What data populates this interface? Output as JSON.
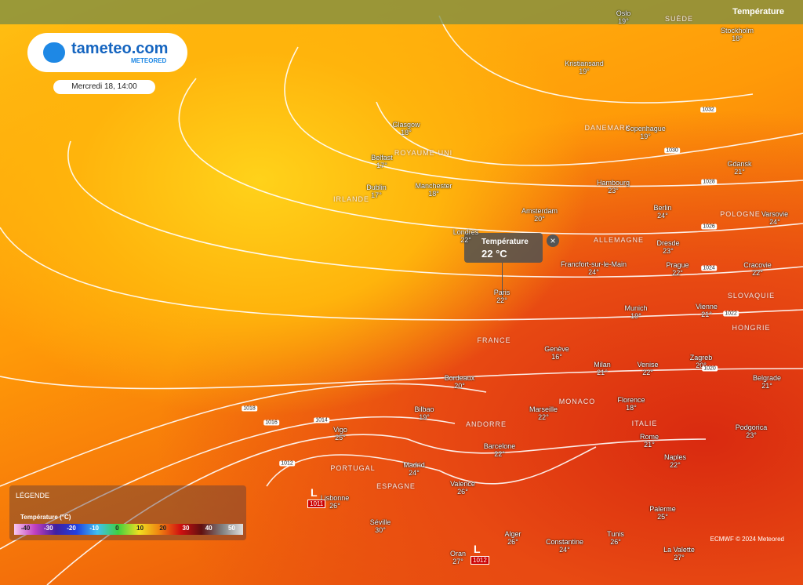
{
  "header": {
    "layer": "Température",
    "date": "Mercredi 18, 14:00"
  },
  "brand": {
    "name": "tameteo.com",
    "sub": "METEORED"
  },
  "popup": {
    "title": "Température",
    "value": "22 °C"
  },
  "cities": [
    {
      "name": "Oslo",
      "temp": "19°"
    },
    {
      "name": "Stockholm",
      "temp": "18°"
    },
    {
      "name": "Kristiansand",
      "temp": "19°"
    },
    {
      "name": "Glasgow",
      "temp": "18°"
    },
    {
      "name": "Copenhague",
      "temp": "19°"
    },
    {
      "name": "Belfast",
      "temp": "17°"
    },
    {
      "name": "Gdansk",
      "temp": "21°"
    },
    {
      "name": "Dublin",
      "temp": "17°"
    },
    {
      "name": "Manchester",
      "temp": "18°"
    },
    {
      "name": "Hambourg",
      "temp": "23°"
    },
    {
      "name": "Amsterdam",
      "temp": "20°"
    },
    {
      "name": "Berlin",
      "temp": "24°"
    },
    {
      "name": "Varsovie",
      "temp": "24°"
    },
    {
      "name": "Londres",
      "temp": "22°"
    },
    {
      "name": "Francfort-sur-le-Main",
      "temp": "24°"
    },
    {
      "name": "Dresde",
      "temp": "23°"
    },
    {
      "name": "Prague",
      "temp": "22°"
    },
    {
      "name": "Cracovie",
      "temp": "22°"
    },
    {
      "name": "Paris",
      "temp": "22°"
    },
    {
      "name": "Munich",
      "temp": "19°"
    },
    {
      "name": "Vienne",
      "temp": "21°"
    },
    {
      "name": "Genève",
      "temp": "16°"
    },
    {
      "name": "Zagreb",
      "temp": "20°"
    },
    {
      "name": "Milan",
      "temp": "21°"
    },
    {
      "name": "Venise",
      "temp": "22°"
    },
    {
      "name": "Bordeaux",
      "temp": "20°"
    },
    {
      "name": "Belgrade",
      "temp": "21°"
    },
    {
      "name": "Bilbao",
      "temp": "19°"
    },
    {
      "name": "Marseille",
      "temp": "22°"
    },
    {
      "name": "Florence",
      "temp": "18°"
    },
    {
      "name": "Vigo",
      "temp": "25°"
    },
    {
      "name": "Podgorica",
      "temp": "23°"
    },
    {
      "name": "Rome",
      "temp": "21°"
    },
    {
      "name": "Barcelone",
      "temp": "22°"
    },
    {
      "name": "Madrid",
      "temp": "24°"
    },
    {
      "name": "Naples",
      "temp": "22°"
    },
    {
      "name": "Valence",
      "temp": "26°"
    },
    {
      "name": "Lisbonne",
      "temp": "26°"
    },
    {
      "name": "Palerme",
      "temp": "25°"
    },
    {
      "name": "Séville",
      "temp": "30°"
    },
    {
      "name": "Alger",
      "temp": "26°"
    },
    {
      "name": "Tunis",
      "temp": "26°"
    },
    {
      "name": "Constantine",
      "temp": "24°"
    },
    {
      "name": "Oran",
      "temp": "27°"
    },
    {
      "name": "La Valette",
      "temp": "27°"
    }
  ],
  "regions": [
    "SUÈDE",
    "DANEMARK",
    "ROYAUME-UNI",
    "IRLANDE",
    "ALLEMAGNE",
    "POLOGNE",
    "FRANCE",
    "SLOVAQUIE",
    "HONGRIE",
    "ITALIE",
    "ESPAGNE",
    "PORTUGAL",
    "MONACO",
    "ANDORRE"
  ],
  "isobars": [
    "1032",
    "1030",
    "1028",
    "1026",
    "1024",
    "1022",
    "1020",
    "1018",
    "1016",
    "1014",
    "1012"
  ],
  "pressure_centers": [
    {
      "letter": "L",
      "value": "1011"
    },
    {
      "letter": "L",
      "value": "1012"
    }
  ],
  "legend": {
    "title": "LÉGENDE",
    "scale_title": "Température (°C)",
    "ticks": [
      -40,
      -30,
      -20,
      -10,
      0,
      10,
      20,
      30,
      40,
      50
    ]
  },
  "credit": "ECMWF © 2024 Meteored"
}
